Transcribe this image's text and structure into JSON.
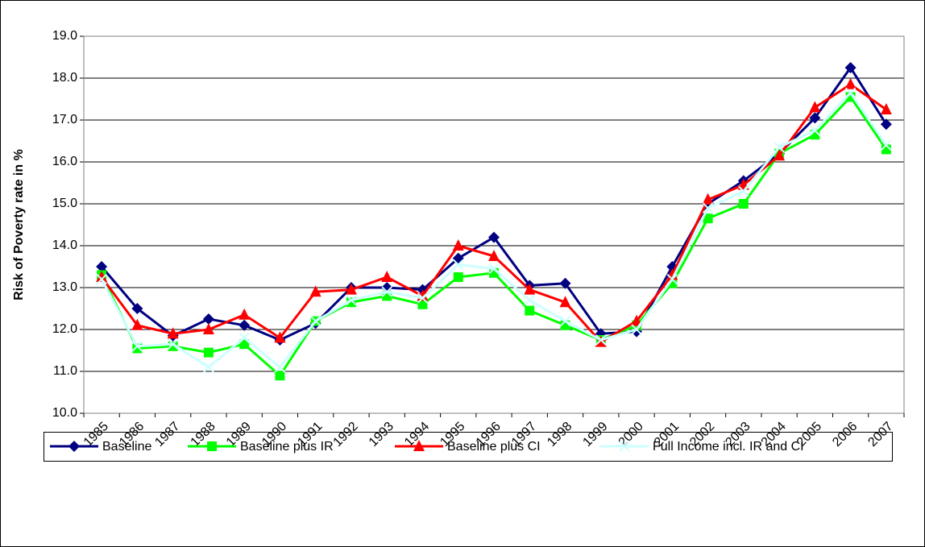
{
  "chart_data": {
    "type": "line",
    "y_label": "Risk of Poverty rate in %",
    "categories": [
      "1985",
      "1986",
      "1987",
      "1988",
      "1989",
      "1990",
      "1991",
      "1992",
      "1993",
      "1994",
      "1995",
      "1996",
      "1997",
      "1998",
      "1999",
      "2000",
      "2001",
      "2002",
      "2003",
      "2004",
      "2005",
      "2006",
      "2007"
    ],
    "ylim": [
      10,
      19
    ],
    "yticks": [
      {
        "value": 10,
        "label": "10.0"
      },
      {
        "value": 11,
        "label": "11.0"
      },
      {
        "value": 12,
        "label": "12.0"
      },
      {
        "value": 13,
        "label": "13.0"
      },
      {
        "value": 14,
        "label": "14.0"
      },
      {
        "value": 15,
        "label": "15.0"
      },
      {
        "value": 16,
        "label": "16.0"
      },
      {
        "value": 17,
        "label": "17.0"
      },
      {
        "value": 18,
        "label": "18.0"
      },
      {
        "value": 19,
        "label": "19.0"
      }
    ],
    "grid": true,
    "legend": "bottom",
    "series": [
      {
        "name": "Baseline",
        "color": "#000080",
        "marker": "diamond",
        "values": [
          13.5,
          12.5,
          11.85,
          12.25,
          12.1,
          11.75,
          12.15,
          13.0,
          13.0,
          12.95,
          13.7,
          14.2,
          13.05,
          13.1,
          11.9,
          11.95,
          13.5,
          15.0,
          15.55,
          16.2,
          17.05,
          18.25,
          16.9
        ]
      },
      {
        "name": "Baseline plus IR",
        "color": "#00ff00",
        "marker": "square",
        "values": [
          13.3,
          11.55,
          11.6,
          11.45,
          11.65,
          10.9,
          12.2,
          12.65,
          12.8,
          12.6,
          13.25,
          13.35,
          12.45,
          12.1,
          11.75,
          12.1,
          13.1,
          14.65,
          15.0,
          16.2,
          16.65,
          17.55,
          16.3
        ]
      },
      {
        "name": "Baseline plus CI",
        "color": "#ff0000",
        "marker": "triangle",
        "values": [
          13.25,
          12.1,
          11.9,
          12.0,
          12.35,
          11.8,
          12.9,
          12.95,
          13.25,
          12.8,
          14.0,
          13.75,
          12.95,
          12.65,
          11.7,
          12.2,
          13.3,
          15.1,
          15.45,
          16.15,
          17.3,
          17.85,
          17.25
        ]
      },
      {
        "name": "Full Income incl. IR and CI",
        "color": "#ccffff",
        "marker": "x",
        "values": [
          13.2,
          11.6,
          11.65,
          11.1,
          11.8,
          11.1,
          12.2,
          12.7,
          12.9,
          12.75,
          13.55,
          13.45,
          12.7,
          12.2,
          11.75,
          12.0,
          13.2,
          14.9,
          15.3,
          16.35,
          16.75,
          17.65,
          16.4
        ]
      }
    ]
  }
}
